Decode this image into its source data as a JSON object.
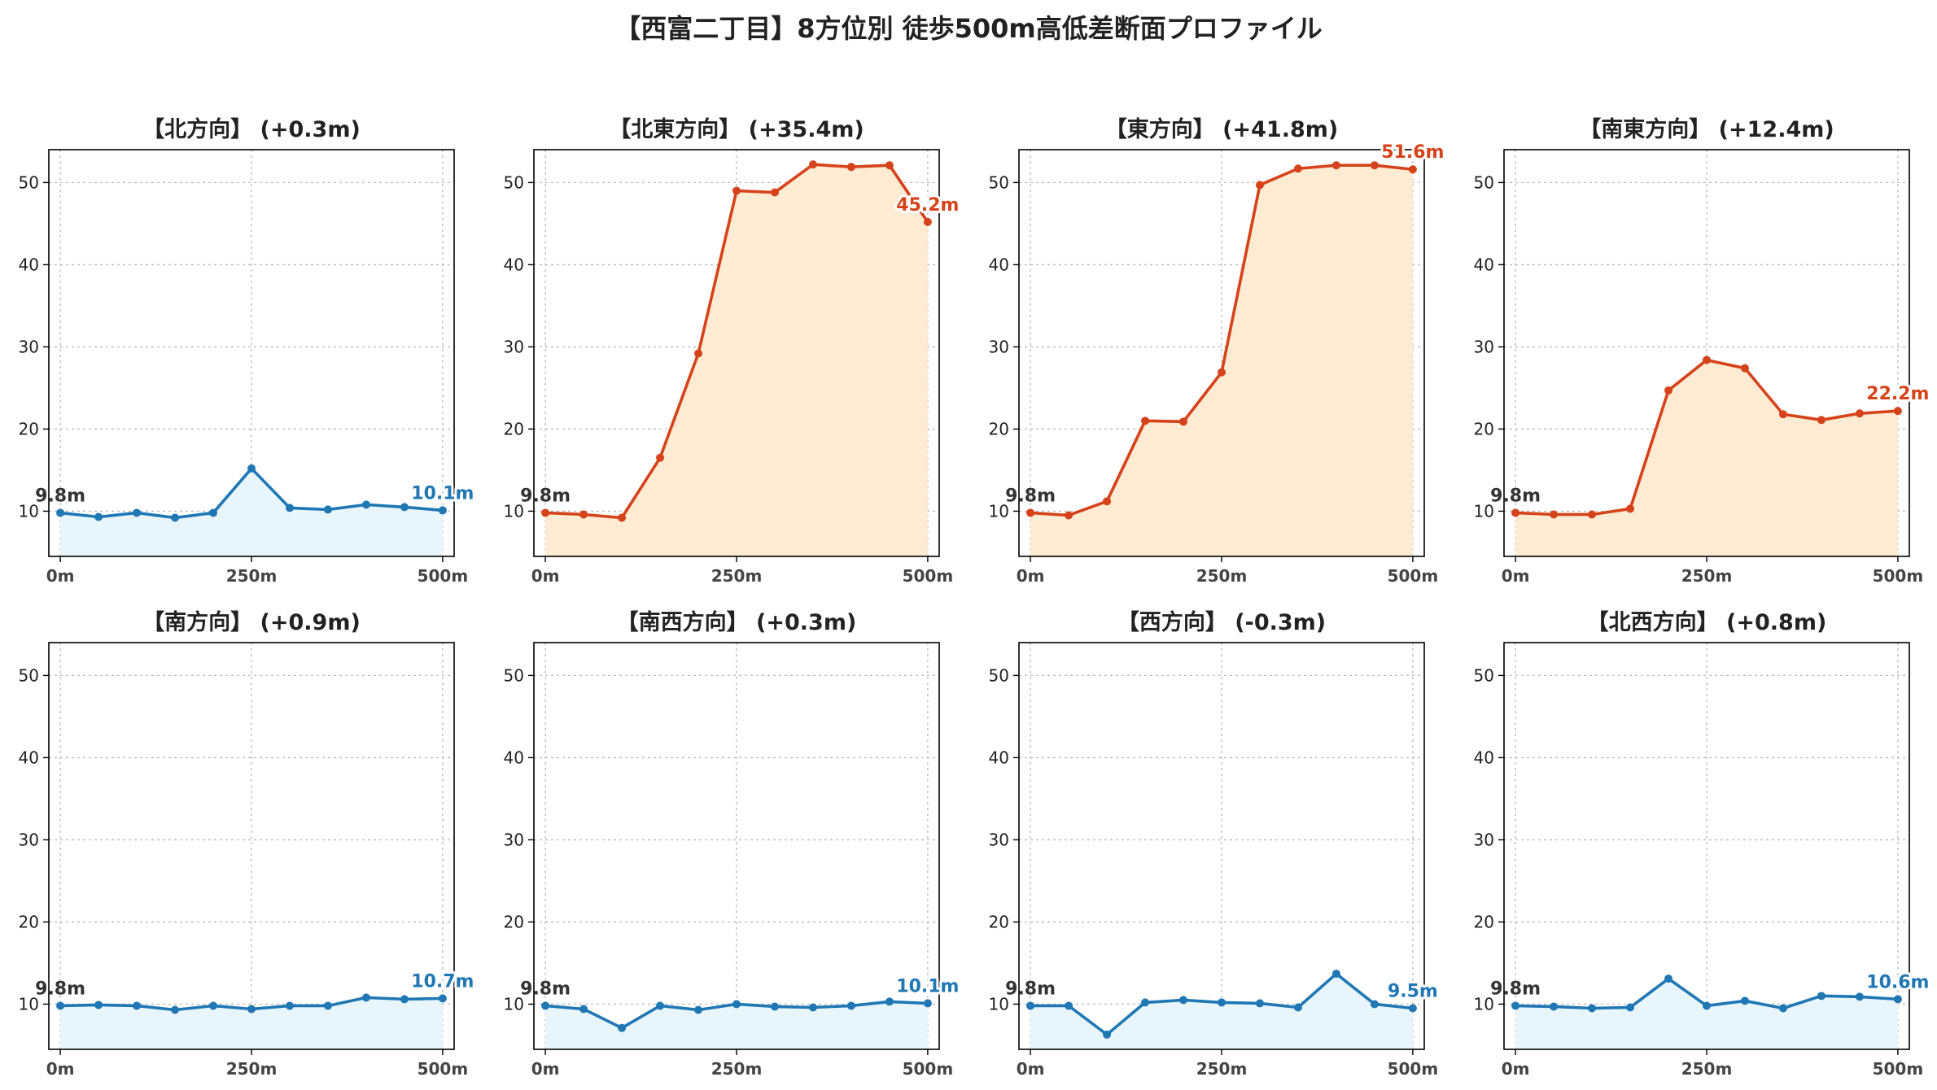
{
  "figure": {
    "title": "【西富二丁目】8方位別 徒歩500m高低差断面プロファイル"
  },
  "colors": {
    "flat_line": "#1f77b4",
    "flat_fill": "#e8f6fc",
    "steep_line": "#d6431a",
    "steep_fill": "#fdebd3",
    "start_label": "#333333"
  },
  "chart_data": [
    {
      "type": "area",
      "title": "【北方向】 (+0.3m)",
      "style": "flat",
      "x": [
        0,
        50,
        100,
        150,
        200,
        250,
        300,
        350,
        400,
        450,
        500
      ],
      "y": [
        9.8,
        9.3,
        9.8,
        9.2,
        9.8,
        15.2,
        10.4,
        10.2,
        10.8,
        10.5,
        10.1
      ],
      "xticks": [
        "0m",
        "250m",
        "500m"
      ],
      "yticks": [
        10,
        20,
        30,
        40,
        50
      ],
      "ylim": [
        4.5,
        54
      ],
      "xlim": [
        -15,
        515
      ],
      "grid": true,
      "start_label": "9.8m",
      "end_label": "10.1m"
    },
    {
      "type": "area",
      "title": "【北東方向】 (+35.4m)",
      "style": "steep",
      "x": [
        0,
        50,
        100,
        150,
        200,
        250,
        300,
        350,
        400,
        450,
        500
      ],
      "y": [
        9.8,
        9.6,
        9.2,
        16.5,
        29.2,
        49.0,
        48.8,
        52.2,
        51.9,
        52.1,
        45.2
      ],
      "xticks": [
        "0m",
        "250m",
        "500m"
      ],
      "yticks": [
        10,
        20,
        30,
        40,
        50
      ],
      "ylim": [
        4.5,
        54
      ],
      "xlim": [
        -15,
        515
      ],
      "grid": true,
      "start_label": "9.8m",
      "end_label": "45.2m"
    },
    {
      "type": "area",
      "title": "【東方向】 (+41.8m)",
      "style": "steep",
      "x": [
        0,
        50,
        100,
        150,
        200,
        250,
        300,
        350,
        400,
        450,
        500
      ],
      "y": [
        9.8,
        9.5,
        11.2,
        21.0,
        20.9,
        26.9,
        49.7,
        51.7,
        52.1,
        52.1,
        51.6
      ],
      "xticks": [
        "0m",
        "250m",
        "500m"
      ],
      "yticks": [
        10,
        20,
        30,
        40,
        50
      ],
      "ylim": [
        4.5,
        54
      ],
      "xlim": [
        -15,
        515
      ],
      "grid": true,
      "start_label": "9.8m",
      "end_label": "51.6m"
    },
    {
      "type": "area",
      "title": "【南東方向】 (+12.4m)",
      "style": "steep",
      "x": [
        0,
        50,
        100,
        150,
        200,
        250,
        300,
        350,
        400,
        450,
        500
      ],
      "y": [
        9.8,
        9.6,
        9.6,
        10.3,
        24.7,
        28.4,
        27.4,
        21.8,
        21.1,
        21.9,
        22.2
      ],
      "xticks": [
        "0m",
        "250m",
        "500m"
      ],
      "yticks": [
        10,
        20,
        30,
        40,
        50
      ],
      "ylim": [
        4.5,
        54
      ],
      "xlim": [
        -15,
        515
      ],
      "grid": true,
      "start_label": "9.8m",
      "end_label": "22.2m"
    },
    {
      "type": "area",
      "title": "【南方向】 (+0.9m)",
      "style": "flat",
      "x": [
        0,
        50,
        100,
        150,
        200,
        250,
        300,
        350,
        400,
        450,
        500
      ],
      "y": [
        9.8,
        9.9,
        9.8,
        9.3,
        9.8,
        9.4,
        9.8,
        9.8,
        10.8,
        10.6,
        10.7
      ],
      "xticks": [
        "0m",
        "250m",
        "500m"
      ],
      "yticks": [
        10,
        20,
        30,
        40,
        50
      ],
      "ylim": [
        4.5,
        54
      ],
      "xlim": [
        -15,
        515
      ],
      "grid": true,
      "start_label": "9.8m",
      "end_label": "10.7m"
    },
    {
      "type": "area",
      "title": "【南西方向】 (+0.3m)",
      "style": "flat",
      "x": [
        0,
        50,
        100,
        150,
        200,
        250,
        300,
        350,
        400,
        450,
        500
      ],
      "y": [
        9.8,
        9.4,
        7.1,
        9.8,
        9.3,
        10.0,
        9.7,
        9.6,
        9.8,
        10.3,
        10.1
      ],
      "xticks": [
        "0m",
        "250m",
        "500m"
      ],
      "yticks": [
        10,
        20,
        30,
        40,
        50
      ],
      "ylim": [
        4.5,
        54
      ],
      "xlim": [
        -15,
        515
      ],
      "grid": true,
      "start_label": "9.8m",
      "end_label": "10.1m"
    },
    {
      "type": "area",
      "title": "【西方向】 (-0.3m)",
      "style": "flat",
      "x": [
        0,
        50,
        100,
        150,
        200,
        250,
        300,
        350,
        400,
        450,
        500
      ],
      "y": [
        9.8,
        9.8,
        6.3,
        10.2,
        10.5,
        10.2,
        10.1,
        9.6,
        13.7,
        10.0,
        9.5
      ],
      "xticks": [
        "0m",
        "250m",
        "500m"
      ],
      "yticks": [
        10,
        20,
        30,
        40,
        50
      ],
      "ylim": [
        4.5,
        54
      ],
      "xlim": [
        -15,
        515
      ],
      "grid": true,
      "start_label": "9.8m",
      "end_label": "9.5m"
    },
    {
      "type": "area",
      "title": "【北西方向】 (+0.8m)",
      "style": "flat",
      "x": [
        0,
        50,
        100,
        150,
        200,
        250,
        300,
        350,
        400,
        450,
        500
      ],
      "y": [
        9.8,
        9.7,
        9.5,
        9.6,
        13.1,
        9.8,
        10.4,
        9.5,
        11.0,
        10.9,
        10.6
      ],
      "xticks": [
        "0m",
        "250m",
        "500m"
      ],
      "yticks": [
        10,
        20,
        30,
        40,
        50
      ],
      "ylim": [
        4.5,
        54
      ],
      "xlim": [
        -15,
        515
      ],
      "grid": true,
      "start_label": "9.8m",
      "end_label": "10.6m"
    }
  ]
}
